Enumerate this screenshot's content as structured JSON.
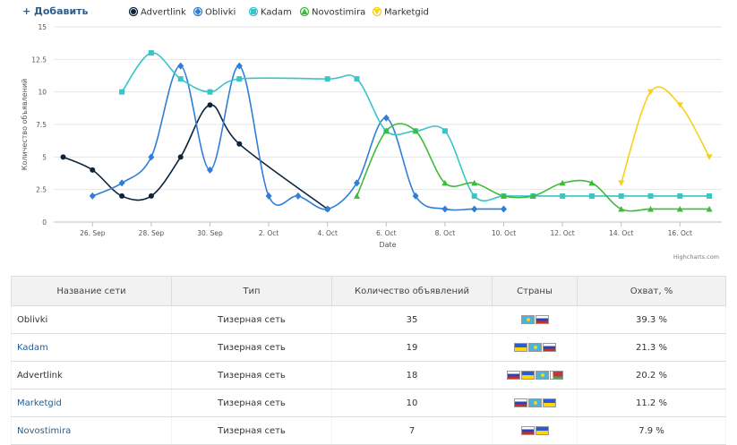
{
  "header": {
    "add_label": "+ Добавить"
  },
  "chart_data": {
    "type": "line",
    "ylabel": "Количество объявлений",
    "xlabel": "Date",
    "credits": "Highcharts.com",
    "ylim": [
      0,
      15
    ],
    "yticks": [
      "0",
      "2.5",
      "5",
      "7.5",
      "10",
      "12.5",
      "15"
    ],
    "xticks": [
      {
        "day": 1,
        "label": "26. Sep"
      },
      {
        "day": 3,
        "label": "28. Sep"
      },
      {
        "day": 5,
        "label": "30. Sep"
      },
      {
        "day": 7,
        "label": "2. Oct"
      },
      {
        "day": 9,
        "label": "4. Oct"
      },
      {
        "day": 11,
        "label": "6. Oct"
      },
      {
        "day": 13,
        "label": "8. Oct"
      },
      {
        "day": 15,
        "label": "10. Oct"
      },
      {
        "day": 17,
        "label": "12. Oct"
      },
      {
        "day": 19,
        "label": "14. Oct"
      },
      {
        "day": 21,
        "label": "16. Oct"
      }
    ],
    "legend_position": "top",
    "series": [
      {
        "name": "Advertlink",
        "color": "#0d233a",
        "marker": "circle",
        "points": [
          [
            0,
            5
          ],
          [
            1,
            4
          ],
          [
            2,
            2
          ],
          [
            3,
            2
          ],
          [
            4,
            5
          ],
          [
            5,
            9
          ],
          [
            6,
            6
          ],
          [
            9,
            1
          ]
        ]
      },
      {
        "name": "Oblivki",
        "color": "#2f7ed8",
        "marker": "diamond",
        "points": [
          [
            1,
            2
          ],
          [
            2,
            3
          ],
          [
            3,
            5
          ],
          [
            4,
            12
          ],
          [
            5,
            4
          ],
          [
            6,
            12
          ],
          [
            7,
            2
          ],
          [
            8,
            2
          ],
          [
            9,
            1
          ],
          [
            10,
            3
          ],
          [
            11,
            8
          ],
          [
            12,
            2
          ],
          [
            13,
            1
          ],
          [
            14,
            1
          ],
          [
            15,
            1
          ]
        ]
      },
      {
        "name": "Kadam",
        "color": "#39c4c8",
        "marker": "square",
        "points": [
          [
            2,
            10
          ],
          [
            3,
            13
          ],
          [
            4,
            11
          ],
          [
            5,
            10
          ],
          [
            6,
            11
          ],
          [
            9,
            11
          ],
          [
            10,
            11
          ],
          [
            11,
            7
          ],
          [
            12,
            7
          ],
          [
            13,
            7
          ],
          [
            14,
            2
          ],
          [
            15,
            2
          ],
          [
            16,
            2
          ],
          [
            17,
            2
          ],
          [
            18,
            2
          ],
          [
            19,
            2
          ],
          [
            20,
            2
          ],
          [
            21,
            2
          ],
          [
            22,
            2
          ]
        ]
      },
      {
        "name": "Novostimira",
        "color": "#3dbb3a",
        "marker": "triangle",
        "points": [
          [
            10,
            2
          ],
          [
            11,
            7
          ],
          [
            12,
            7
          ],
          [
            13,
            3
          ],
          [
            14,
            3
          ],
          [
            15,
            2
          ],
          [
            16,
            2
          ],
          [
            17,
            3
          ],
          [
            18,
            3
          ],
          [
            19,
            1
          ],
          [
            20,
            1
          ],
          [
            21,
            1
          ],
          [
            22,
            1
          ]
        ]
      },
      {
        "name": "Marketgid",
        "color": "#f5d11a",
        "marker": "triangle-down",
        "points": [
          [
            19,
            3
          ],
          [
            20,
            10
          ],
          [
            21,
            9
          ],
          [
            22,
            5
          ]
        ]
      }
    ]
  },
  "table": {
    "headers": [
      "Название сети",
      "Тип",
      "Количество объявлений",
      "Страны",
      "Охват, %"
    ],
    "rows": [
      {
        "name": "Oblivki",
        "link": false,
        "type": "Тизерная сеть",
        "count": "35",
        "flags": [
          "kz",
          "ru"
        ],
        "reach": "39.3 %"
      },
      {
        "name": "Kadam",
        "link": true,
        "type": "Тизерная сеть",
        "count": "19",
        "flags": [
          "ua",
          "kz",
          "ru"
        ],
        "reach": "21.3 %"
      },
      {
        "name": "Advertlink",
        "link": false,
        "type": "Тизерная сеть",
        "count": "18",
        "flags": [
          "ru",
          "ua",
          "kz",
          "by"
        ],
        "reach": "20.2 %"
      },
      {
        "name": "Marketgid",
        "link": true,
        "type": "Тизерная сеть",
        "count": "10",
        "flags": [
          "ru",
          "kz",
          "ua"
        ],
        "reach": "11.2 %"
      },
      {
        "name": "Novostimira",
        "link": true,
        "type": "Тизерная сеть",
        "count": "7",
        "flags": [
          "ru",
          "ua"
        ],
        "reach": "7.9 %"
      }
    ]
  }
}
